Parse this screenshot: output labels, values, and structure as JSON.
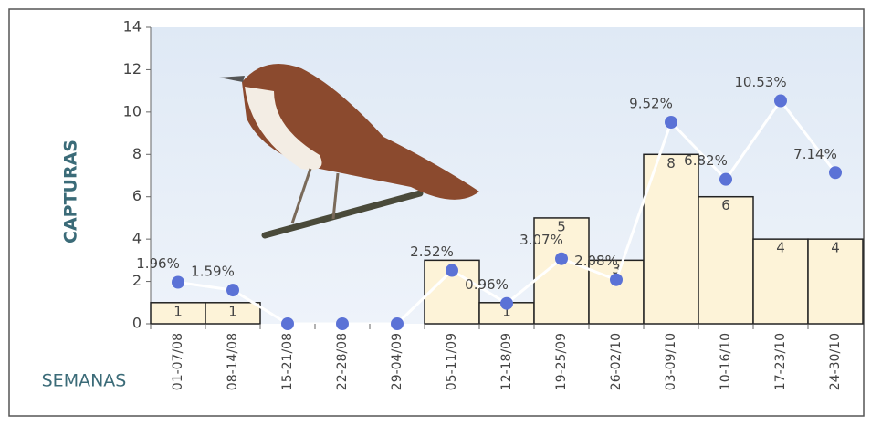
{
  "chart_data": {
    "type": "bar_line",
    "ylabel": "CAPTURAS",
    "xlabel": "SEMANAS",
    "categories": [
      "01-07/08",
      "08-14/08",
      "15-21/08",
      "22-28/08",
      "29-04/09",
      "05-11/09",
      "12-18/09",
      "19-25/09",
      "26-02/10",
      "03-09/10",
      "10-16/10",
      "17-23/10",
      "24-30/10"
    ],
    "series": [
      {
        "kind": "bar",
        "color": "#fdf3d8",
        "values": [
          1,
          1,
          0,
          0,
          0,
          3,
          1,
          5,
          3,
          8,
          6,
          4,
          4
        ]
      },
      {
        "kind": "line",
        "color": "#5b72d6",
        "values": [
          1.96,
          1.59,
          0,
          0,
          0,
          2.52,
          0.96,
          3.07,
          2.08,
          9.52,
          6.82,
          10.53,
          7.14
        ],
        "value_labels": [
          "1.96%",
          "1.59%",
          null,
          null,
          null,
          "2.52%",
          "0.96%",
          "3.07%",
          "2.08%",
          "9.52%",
          "6.82%",
          "10.53%",
          "7.14%"
        ]
      }
    ],
    "ylim": [
      0,
      14
    ],
    "yticks": [
      0,
      2,
      4,
      6,
      8,
      10,
      12,
      14
    ]
  }
}
